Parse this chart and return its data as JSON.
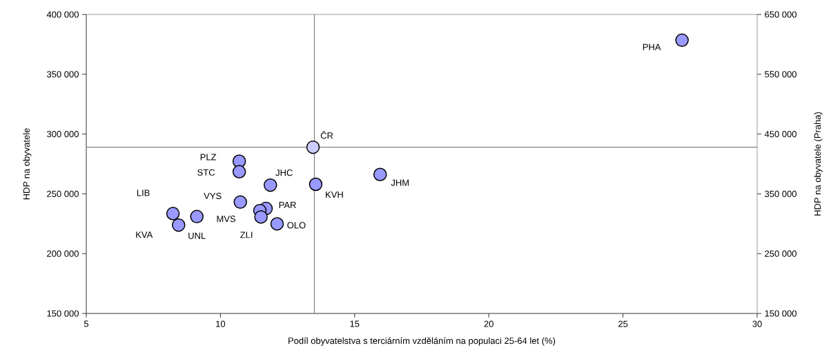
{
  "chart_data": {
    "type": "scatter",
    "xlabel": "Podíl obyvatelstva s terciárním vzděláním na populaci 25-64 let (%)",
    "ylabel": "HDP na obyvatele",
    "y2label": "HDP na obyvatele (Praha)",
    "xlim": [
      5,
      30
    ],
    "xticks": [
      5,
      10,
      15,
      20,
      25,
      30
    ],
    "ylim": [
      150000,
      400000
    ],
    "yticks": [
      {
        "value": 150000,
        "label": "150 000"
      },
      {
        "value": 200000,
        "label": "200 000"
      },
      {
        "value": 250000,
        "label": "250 000"
      },
      {
        "value": 300000,
        "label": "300 000"
      },
      {
        "value": 350000,
        "label": "350 000"
      },
      {
        "value": 400000,
        "label": "400 000"
      }
    ],
    "y2lim": [
      150000,
      650000
    ],
    "y2ticks": [
      {
        "value": 150000,
        "label": "150 000"
      },
      {
        "value": 250000,
        "label": "250 000"
      },
      {
        "value": 350000,
        "label": "350 000"
      },
      {
        "value": 450000,
        "label": "450 000"
      },
      {
        "value": 550000,
        "label": "550 000"
      },
      {
        "value": 650000,
        "label": "650 000"
      }
    ],
    "marker": "circle",
    "grid": false,
    "series": [
      {
        "color": "#9999ff",
        "x": [
          10.7,
          10.7,
          11.86,
          13.55,
          15.95,
          8.23,
          10.74,
          11.7,
          11.47,
          11.51,
          12.11,
          8.44,
          9.12
        ],
        "values": [
          277300,
          268500,
          257300,
          258000,
          266200,
          233500,
          243100,
          237800,
          236000,
          230700,
          224900,
          223900,
          231000
        ]
      },
      {
        "color": "#ccccff",
        "x": [
          13.45
        ],
        "values": [
          289000
        ]
      },
      {
        "color": "#9999ff",
        "axis": "y2",
        "x": [
          27.2
        ],
        "values": [
          607000
        ]
      }
    ],
    "ref_lines": [
      {
        "axis": "x",
        "value": 13.5,
        "color": "#808080"
      },
      {
        "axis": "y",
        "value": 289000,
        "color": "#808080"
      }
    ],
    "annotations": [
      "PLZ",
      "STC",
      "JHC",
      "KVH",
      "JHM",
      "LIB",
      "VYS",
      "PAR",
      "MVS",
      "ZLI",
      "OLO",
      "KVA",
      "UNL",
      "ČR",
      "PHA"
    ]
  }
}
